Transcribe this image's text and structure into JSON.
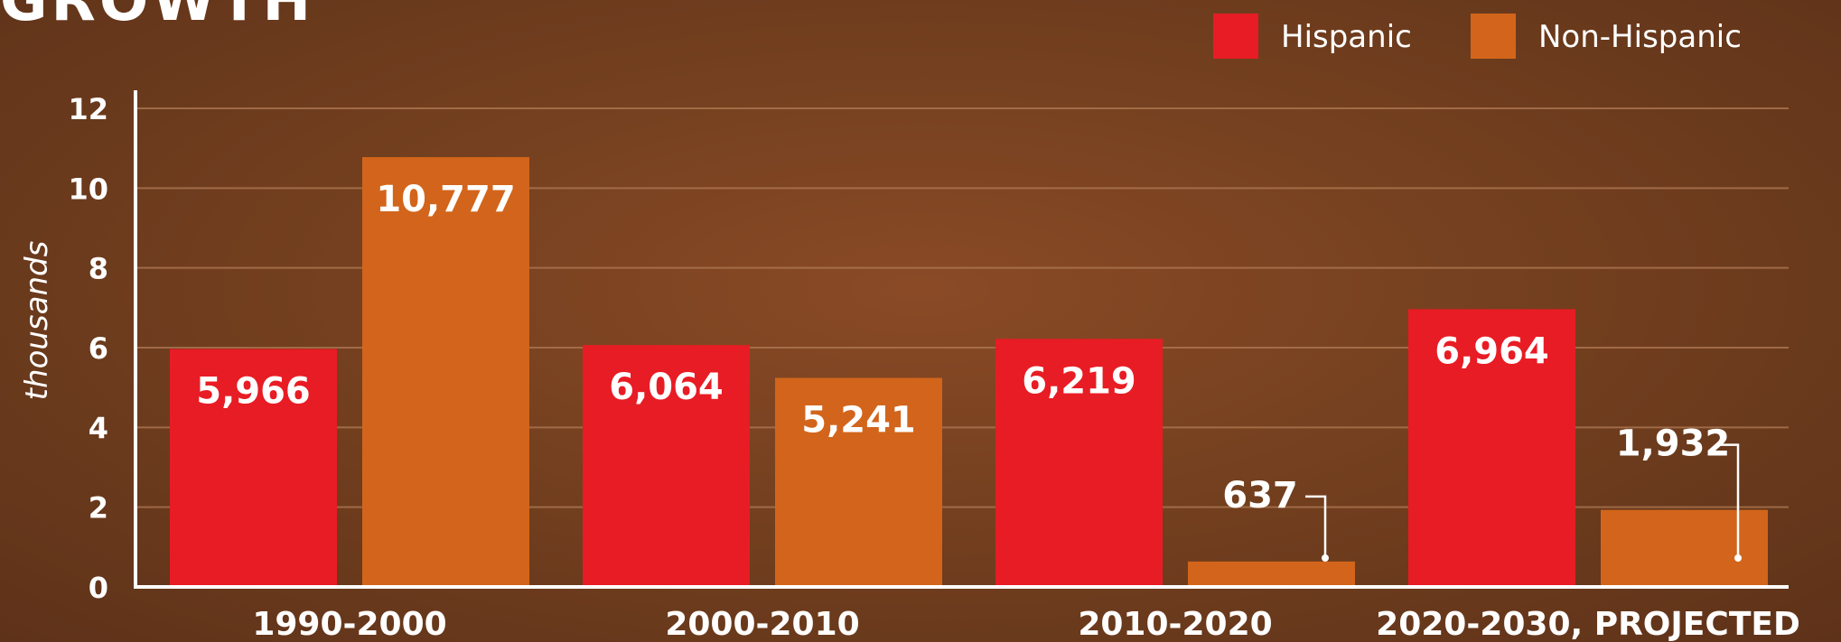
{
  "chart_data": {
    "type": "bar",
    "title": "GROWTH",
    "ylabel": "thousands",
    "xlabel": "",
    "ylim": [
      0,
      12
    ],
    "yticks": [
      0,
      2,
      4,
      6,
      8,
      10,
      12
    ],
    "categories": [
      "1990-2000",
      "2000-2010",
      "2010-2020",
      "2020-2030, PROJECTED"
    ],
    "series": [
      {
        "name": "Hispanic",
        "color": "#e81c24",
        "values": [
          5.966,
          6.064,
          6.219,
          6.964
        ],
        "labels": [
          "5,966",
          "6,064",
          "6,219",
          "6,964"
        ]
      },
      {
        "name": "Non-Hispanic",
        "color": "#d2651b",
        "values": [
          10.777,
          5.241,
          0.637,
          1.932
        ],
        "labels": [
          "10,777",
          "5,241",
          "637",
          "1,932"
        ]
      }
    ],
    "grid": true,
    "legend_position": "top-right"
  }
}
